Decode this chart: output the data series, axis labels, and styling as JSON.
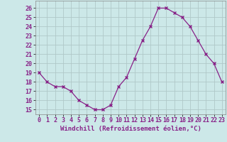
{
  "x": [
    0,
    1,
    2,
    3,
    4,
    5,
    6,
    7,
    8,
    9,
    10,
    11,
    12,
    13,
    14,
    15,
    16,
    17,
    18,
    19,
    20,
    21,
    22,
    23
  ],
  "y": [
    19,
    18,
    17.5,
    17.5,
    17,
    16,
    15.5,
    15,
    15,
    15.5,
    17.5,
    18.5,
    20.5,
    22.5,
    24,
    26,
    26,
    25.5,
    25,
    24,
    22.5,
    21,
    20,
    18
  ],
  "line_color": "#882288",
  "marker": "x",
  "xlabel": "Windchill (Refroidissement éolien,°C)",
  "ylim": [
    14.5,
    26.8
  ],
  "xlim": [
    -0.5,
    23.5
  ],
  "yticks": [
    15,
    16,
    17,
    18,
    19,
    20,
    21,
    22,
    23,
    24,
    25,
    26
  ],
  "xticks": [
    0,
    1,
    2,
    3,
    4,
    5,
    6,
    7,
    8,
    9,
    10,
    11,
    12,
    13,
    14,
    15,
    16,
    17,
    18,
    19,
    20,
    21,
    22,
    23
  ],
  "bg_color": "#cce8e8",
  "grid_color": "#b0c8c8",
  "label_fontsize": 6.5,
  "tick_fontsize": 6.0
}
